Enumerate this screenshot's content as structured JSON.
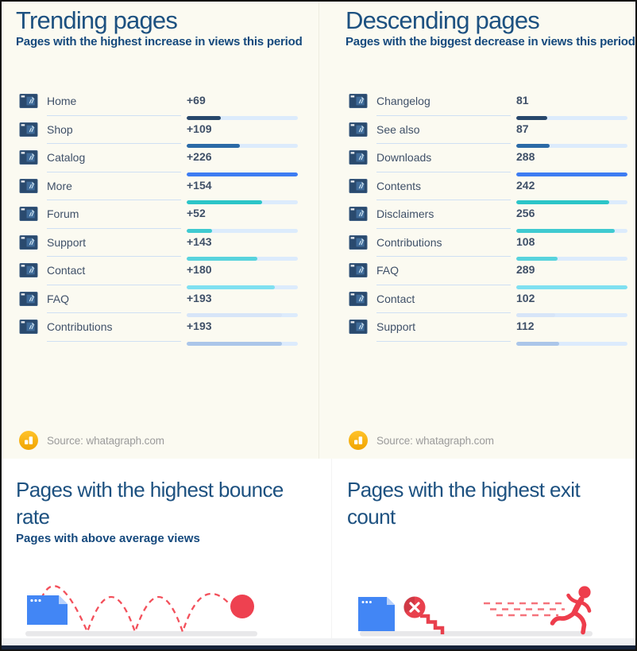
{
  "chart_data": [
    {
      "type": "bar",
      "title": "Trending pages",
      "subtitle": "Pages with the highest increase in views this period",
      "categories": [
        "Home",
        "Shop",
        "Catalog",
        "More",
        "Forum",
        "Support",
        "Contact",
        "FAQ",
        "Contributions"
      ],
      "values": [
        69,
        109,
        226,
        154,
        52,
        143,
        180,
        193,
        193
      ],
      "value_labels": [
        "+69",
        "+109",
        "+226",
        "+154",
        "+52",
        "+143",
        "+180",
        "+193",
        "+193"
      ],
      "bar_pct": [
        30.5,
        48.2,
        100,
        68.1,
        23,
        63.3,
        79.6,
        85.4,
        85.4
      ],
      "bar_colors": [
        "#27476b",
        "#2b6aa6",
        "#3d7cf2",
        "#2cc5c8",
        "#3fcad1",
        "#58d3dd",
        "#7fe0f1",
        "#d7e5f8",
        "#abc6e9"
      ],
      "xlim": [
        0,
        226
      ],
      "source": "Source: whatagraph.com"
    },
    {
      "type": "bar",
      "title": "Descending pages",
      "subtitle": "Pages with the biggest decrease in views this period",
      "categories": [
        "Changelog",
        "See also",
        "Downloads",
        "Contents",
        "Disclaimers",
        "Contributions",
        "FAQ",
        "Contact",
        "Support"
      ],
      "values": [
        81,
        87,
        288,
        242,
        256,
        108,
        289,
        102,
        112
      ],
      "value_labels": [
        "81",
        "87",
        "288",
        "242",
        "256",
        "108",
        "289",
        "102",
        "112"
      ],
      "bar_pct": [
        28,
        30.1,
        99.7,
        83.7,
        88.6,
        37.4,
        100,
        35.3,
        38.8
      ],
      "bar_colors": [
        "#27476b",
        "#2b6aa6",
        "#3d7cf2",
        "#2cc5c8",
        "#3fcad1",
        "#58d3dd",
        "#7fe0f1",
        "#d7e5f8",
        "#abc6e9"
      ],
      "xlim": [
        0,
        289
      ],
      "source": "Source: whatagraph.com"
    }
  ],
  "bottom": {
    "bounce": {
      "title": "Pages with the highest bounce rate",
      "subtitle": "Pages with above average views"
    },
    "exit": {
      "title": "Pages with the highest exit count"
    }
  },
  "colors": {
    "top_background": "#fbfaf1",
    "bottom_background": "#ffffff",
    "title_blue": "#1d5180",
    "subtitle_blue": "#15497d",
    "row_text": "#3f5068",
    "bar_track": "#dcebfc",
    "source_gray": "#9b9b9b",
    "source_gold": "#f7b217",
    "illustration_blue": "#4286f5",
    "illustration_red": "#ee3d4c",
    "footer_navy": "#16233a"
  }
}
